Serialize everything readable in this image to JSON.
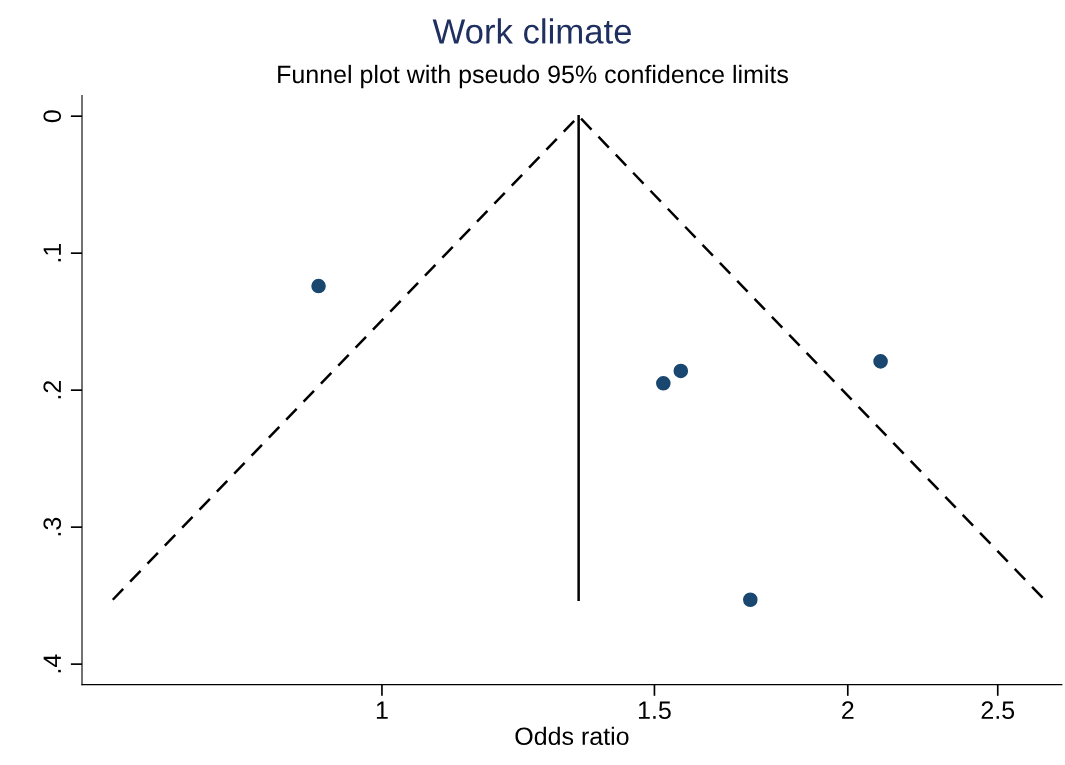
{
  "chart_data": {
    "type": "scatter",
    "title": "Work climate",
    "subtitle": "Funnel plot with pseudo 95% confidence limits",
    "xlabel": "Odds ratio",
    "log": "x",
    "series": [
      {
        "color": "#1a476f",
        "marker": "circle",
        "x": [
          0.91,
          1.52,
          1.56,
          2.1,
          1.73
        ],
        "values": [
          0.124,
          0.195,
          0.186,
          0.179,
          0.353
        ]
      },
      {
        "type": "line",
        "color": "#000000",
        "line_style": "dashed",
        "marker": "none",
        "x": [
          0.67,
          1.34,
          2.68
        ],
        "values": [
          0.353,
          0,
          0.353
        ]
      },
      {
        "type": "line",
        "color": "#000000",
        "line_style": "solid",
        "marker": "none",
        "x": [
          1.34,
          1.34
        ],
        "values": [
          0,
          0.353
        ]
      }
    ],
    "xlim": [
      0.64,
      2.75
    ],
    "xticks": [
      1,
      1.5,
      2,
      2.5
    ],
    "ylim": [
      0.415,
      -0.015
    ],
    "yticks": [
      {
        "value": 0,
        "label": "0"
      },
      {
        "value": 0.1,
        "label": ".1"
      },
      {
        "value": 0.2,
        "label": ".2"
      },
      {
        "value": 0.3,
        "label": ".3"
      },
      {
        "value": 0.4,
        "label": ".4"
      }
    ],
    "grid": false,
    "legend": false
  }
}
